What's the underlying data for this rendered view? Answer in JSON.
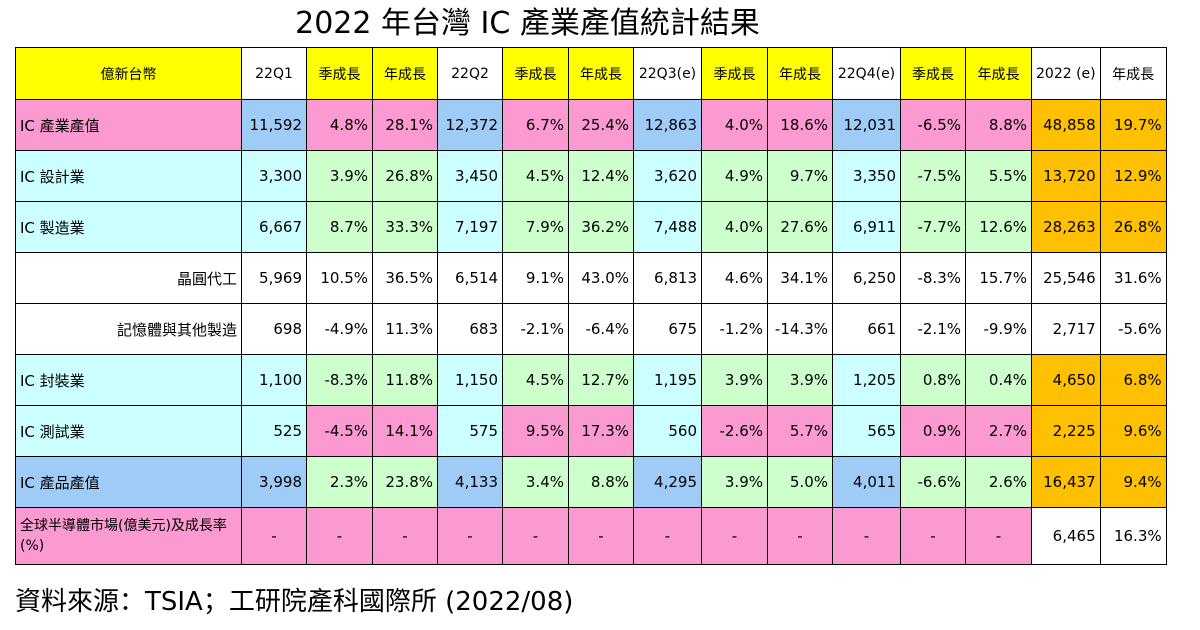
{
  "title": "2022 年台灣 IC 產業產值統計結果",
  "source": "資料來源：TSIA；工研院產科國際所 (2022/08)",
  "colors": {
    "yellow": "#ffff00",
    "blue": "#9fcbf7",
    "pink": "#fb99d1",
    "cyan": "#ccffff",
    "green": "#ccffcc",
    "orange": "#ffc000",
    "white": "#ffffff"
  },
  "headers": [
    "億新台幣",
    "22Q1",
    "季成長",
    "年成長",
    "22Q2",
    "季成長",
    "年成長",
    "22Q3(e)",
    "季成長",
    "年成長",
    "22Q4(e)",
    "季成長",
    "年成長",
    "2022 (e)",
    "年成長"
  ],
  "rows": [
    {
      "label": "IC 產業產值",
      "cells": [
        "11,592",
        "4.8%",
        "28.1%",
        "12,372",
        "6.7%",
        "25.4%",
        "12,863",
        "4.0%",
        "18.6%",
        "12,031",
        "-6.5%",
        "8.8%",
        "48,858",
        "19.7%"
      ]
    },
    {
      "label": "IC 設計業",
      "cells": [
        "3,300",
        "3.9%",
        "26.8%",
        "3,450",
        "4.5%",
        "12.4%",
        "3,620",
        "4.9%",
        "9.7%",
        "3,350",
        "-7.5%",
        "5.5%",
        "13,720",
        "12.9%"
      ]
    },
    {
      "label": "IC 製造業",
      "cells": [
        "6,667",
        "8.7%",
        "33.3%",
        "7,197",
        "7.9%",
        "36.2%",
        "7,488",
        "4.0%",
        "27.6%",
        "6,911",
        "-7.7%",
        "12.6%",
        "28,263",
        "26.8%"
      ]
    },
    {
      "label": "晶圓代工",
      "cells": [
        "5,969",
        "10.5%",
        "36.5%",
        "6,514",
        "9.1%",
        "43.0%",
        "6,813",
        "4.6%",
        "34.1%",
        "6,250",
        "-8.3%",
        "15.7%",
        "25,546",
        "31.6%"
      ]
    },
    {
      "label": "記憶體與其他製造",
      "cells": [
        "698",
        "-4.9%",
        "11.3%",
        "683",
        "-2.1%",
        "-6.4%",
        "675",
        "-1.2%",
        "-14.3%",
        "661",
        "-2.1%",
        "-9.9%",
        "2,717",
        "-5.6%"
      ]
    },
    {
      "label": "IC 封裝業",
      "cells": [
        "1,100",
        "-8.3%",
        "11.8%",
        "1,150",
        "4.5%",
        "12.7%",
        "1,195",
        "3.9%",
        "3.9%",
        "1,205",
        "0.8%",
        "0.4%",
        "4,650",
        "6.8%"
      ]
    },
    {
      "label": "IC 測試業",
      "cells": [
        "525",
        "-4.5%",
        "14.1%",
        "575",
        "9.5%",
        "17.3%",
        "560",
        "-2.6%",
        "5.7%",
        "565",
        "0.9%",
        "2.7%",
        "2,225",
        "9.6%"
      ]
    },
    {
      "label": "IC 產品產值",
      "cells": [
        "3,998",
        "2.3%",
        "23.8%",
        "4,133",
        "3.4%",
        "8.8%",
        "4,295",
        "3.9%",
        "5.0%",
        "4,011",
        "-6.6%",
        "2.6%",
        "16,437",
        "9.4%"
      ]
    },
    {
      "label": "全球半導體市場(億美元)及成長率(%)",
      "cells": [
        "-",
        "-",
        "-",
        "-",
        "-",
        "-",
        "-",
        "-",
        "-",
        "-",
        "-",
        "-",
        "6,465",
        "16.3%"
      ]
    }
  ]
}
